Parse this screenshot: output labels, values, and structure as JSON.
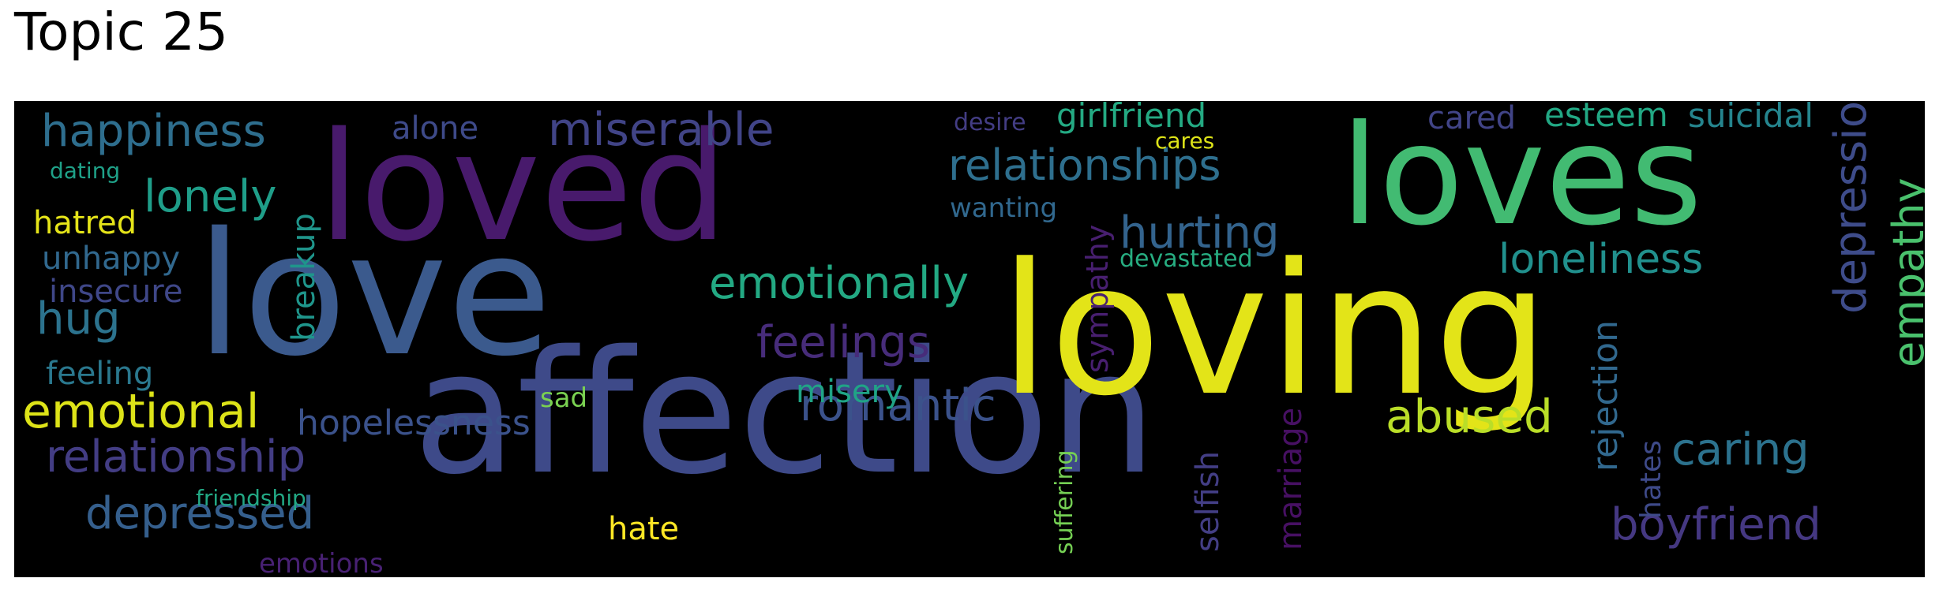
{
  "title": "Topic 25",
  "chart_data": {
    "type": "wordcloud",
    "title": "Topic 25",
    "background": "#000000",
    "colormap": "viridis",
    "words": [
      {
        "text": "affection",
        "color": "#3e4a89"
      },
      {
        "text": "loving",
        "color": "#e3e418"
      },
      {
        "text": "love",
        "color": "#3b5a8d"
      },
      {
        "text": "loved",
        "color": "#481a6c"
      },
      {
        "text": "loves",
        "color": "#42bb72"
      },
      {
        "text": "miserable",
        "color": "#414487"
      },
      {
        "text": "relationships",
        "color": "#2e6f8e"
      },
      {
        "text": "emotionally",
        "color": "#23a983"
      },
      {
        "text": "happiness",
        "color": "#2e6e8e"
      },
      {
        "text": "feelings",
        "color": "#472c7a"
      },
      {
        "text": "romantic",
        "color": "#3b528b"
      },
      {
        "text": "hurting",
        "color": "#33638d"
      },
      {
        "text": "loneliness",
        "color": "#21908d"
      },
      {
        "text": "lonely",
        "color": "#1f9e89"
      },
      {
        "text": "relationship",
        "color": "#433d84"
      },
      {
        "text": "depressed",
        "color": "#355f8d"
      },
      {
        "text": "emotional",
        "color": "#dde318"
      },
      {
        "text": "abused",
        "color": "#bade28"
      },
      {
        "text": "caring",
        "color": "#2c728e"
      },
      {
        "text": "boyfriend",
        "color": "#453882"
      },
      {
        "text": "depression",
        "color": "#3e4c8a"
      },
      {
        "text": "empathy",
        "color": "#4ac16d"
      },
      {
        "text": "hopelessness",
        "color": "#3b528b"
      },
      {
        "text": "rejection",
        "color": "#31688e"
      },
      {
        "text": "hug",
        "color": "#2c738e"
      },
      {
        "text": "esteem",
        "color": "#22a884"
      },
      {
        "text": "suicidal",
        "color": "#25858e"
      },
      {
        "text": "girlfriend",
        "color": "#24aa83"
      },
      {
        "text": "cared",
        "color": "#414487"
      },
      {
        "text": "alone",
        "color": "#3e4a89"
      },
      {
        "text": "unhappy",
        "color": "#31688e"
      },
      {
        "text": "insecure",
        "color": "#3f4788"
      },
      {
        "text": "hatred",
        "color": "#e5e419"
      },
      {
        "text": "feeling",
        "color": "#2a788e"
      },
      {
        "text": "breakup",
        "color": "#1f958b"
      },
      {
        "text": "misery",
        "color": "#20a486"
      },
      {
        "text": "hate",
        "color": "#fde725"
      },
      {
        "text": "marriage",
        "color": "#471063"
      },
      {
        "text": "selfish",
        "color": "#433e85"
      },
      {
        "text": "hates",
        "color": "#3e4a89"
      },
      {
        "text": "sympathy",
        "color": "#481f70"
      },
      {
        "text": "wanting",
        "color": "#31688e"
      },
      {
        "text": "sad",
        "color": "#7ad151"
      },
      {
        "text": "devastated",
        "color": "#27ad81"
      },
      {
        "text": "desire",
        "color": "#433d84"
      },
      {
        "text": "cares",
        "color": "#dde318"
      },
      {
        "text": "suffering",
        "color": "#75d054"
      },
      {
        "text": "friendship",
        "color": "#22a884"
      },
      {
        "text": "emotions",
        "color": "#482173"
      },
      {
        "text": "dating",
        "color": "#1fa188"
      }
    ]
  }
}
